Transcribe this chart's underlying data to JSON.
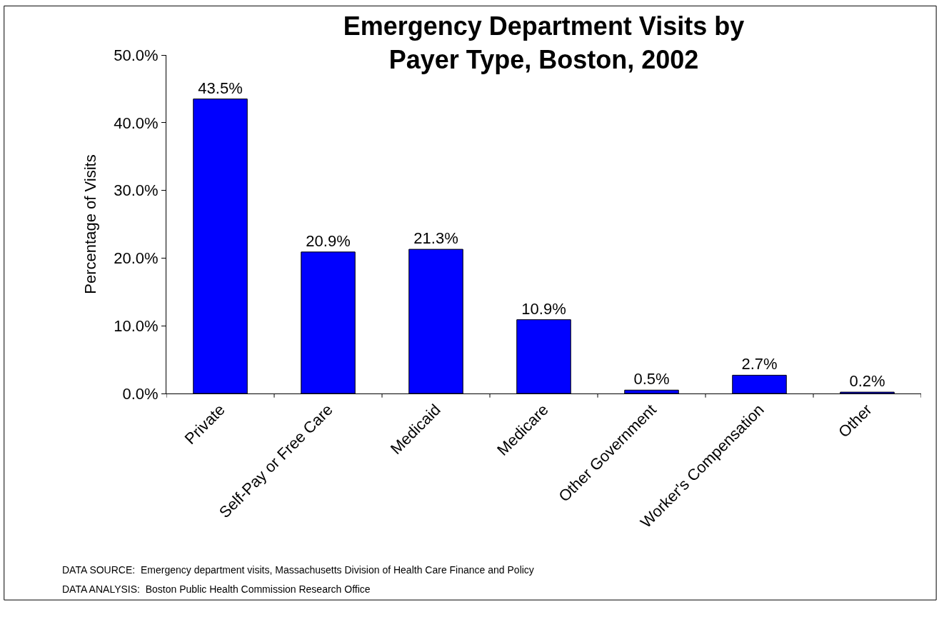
{
  "chart_data": {
    "type": "bar",
    "title": "Emergency Department Visits by\nPayer Type, Boston, 2002",
    "ylabel": "Percentage of Visits",
    "categories": [
      "Private",
      "Self-Pay or Free Care",
      "Medicaid",
      "Medicare",
      "Other Government",
      "Worker's Compensation",
      "Other"
    ],
    "values": [
      43.5,
      20.9,
      21.3,
      10.9,
      0.5,
      2.7,
      0.2
    ],
    "value_labels": [
      "43.5%",
      "20.9%",
      "21.3%",
      "10.9%",
      "0.5%",
      "2.7%",
      "0.2%"
    ],
    "color": "#0000ff",
    "ylim": [
      0,
      50
    ],
    "yticks": [
      {
        "value": 0,
        "label": "0.0%"
      },
      {
        "value": 10,
        "label": "10.0%"
      },
      {
        "value": 20,
        "label": "20.0%"
      },
      {
        "value": 30,
        "label": "30.0%"
      },
      {
        "value": 40,
        "label": "40.0%"
      },
      {
        "value": 50,
        "label": "50.0%"
      }
    ],
    "legend": false,
    "annotations": [
      "DATA SOURCE:  Emergency department visits, Massachusetts Division of Health Care Finance and Policy",
      "DATA ANALYSIS:  Boston Public Health Commission Research Office"
    ]
  }
}
